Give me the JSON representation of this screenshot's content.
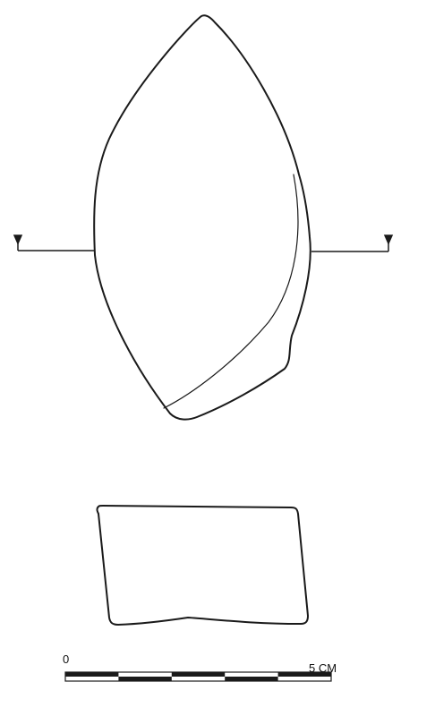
{
  "figure": {
    "ink_color": "#1a1a1a",
    "paper_color": "#ffffff"
  },
  "scale": {
    "label_start": "0",
    "label_end": "5 CM",
    "segments": 5
  }
}
